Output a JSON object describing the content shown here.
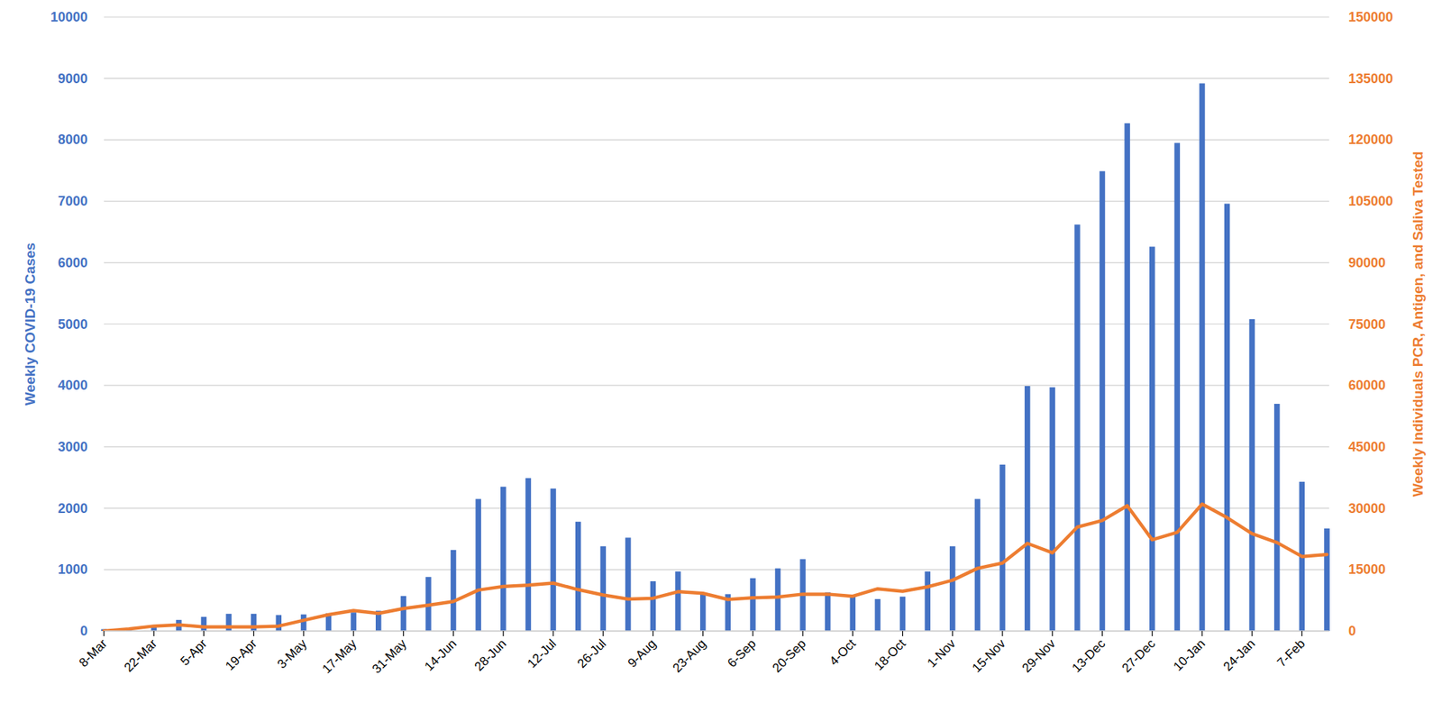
{
  "chart_data": {
    "type": "bar",
    "y_label": "Weekly COVID-19 Cases",
    "y2_label": "Weekly Individuals PCR, Antigen, and Saliva Tested",
    "categories": [
      "8-Mar",
      null,
      "22-Mar",
      null,
      "5-Apr",
      null,
      "19-Apr",
      null,
      "3-May",
      null,
      "17-May",
      null,
      "31-May",
      null,
      "14-Jun",
      null,
      "28-Jun",
      null,
      "12-Jul",
      null,
      "26-Jul",
      null,
      "9-Aug",
      null,
      "23-Aug",
      null,
      "6-Sep",
      null,
      "20-Sep",
      null,
      "4-Oct",
      null,
      "18-Oct",
      null,
      "1-Nov",
      null,
      "15-Nov",
      null,
      "29-Nov",
      null,
      "13-Dec",
      null,
      "27-Dec",
      null,
      "10-Jan",
      null,
      "24-Jan",
      null,
      "7-Feb",
      null
    ],
    "series": [
      {
        "type": "bar",
        "color": "#4472c4",
        "values": [
          30,
          10,
          60,
          180,
          230,
          280,
          280,
          260,
          270,
          290,
          300,
          330,
          570,
          880,
          1320,
          2150,
          2350,
          2490,
          2320,
          1780,
          1380,
          1520,
          810,
          970,
          620,
          600,
          860,
          1020,
          1170,
          630,
          580,
          520,
          560,
          970,
          1380,
          2150,
          2710,
          3990,
          3970,
          6620,
          7490,
          8270,
          6260,
          7950,
          8920,
          6960,
          5080,
          3700,
          2430,
          1670
        ]
      },
      {
        "type": "line",
        "color": "#ed7d31",
        "axis": "y2",
        "values": [
          0,
          500,
          1200,
          1500,
          1000,
          1000,
          1000,
          1200,
          2600,
          4000,
          5000,
          4300,
          5500,
          6300,
          7200,
          10000,
          10900,
          11200,
          11700,
          10100,
          8800,
          7800,
          8000,
          9600,
          9200,
          7700,
          8100,
          8300,
          9000,
          9000,
          8500,
          10300,
          9700,
          10800,
          12400,
          15300,
          16600,
          21400,
          19100,
          25400,
          27000,
          30600,
          22300,
          24100,
          31000,
          27700,
          23800,
          21600,
          18200,
          18700
        ]
      }
    ],
    "ylim": [
      0,
      10000
    ],
    "yticks": [
      0,
      1000,
      2000,
      3000,
      4000,
      5000,
      6000,
      7000,
      8000,
      9000,
      10000
    ],
    "y2lim": [
      0,
      150000
    ],
    "y2ticks": [
      0,
      15000,
      30000,
      45000,
      60000,
      75000,
      90000,
      105000,
      120000,
      135000,
      150000
    ],
    "grid": true
  }
}
